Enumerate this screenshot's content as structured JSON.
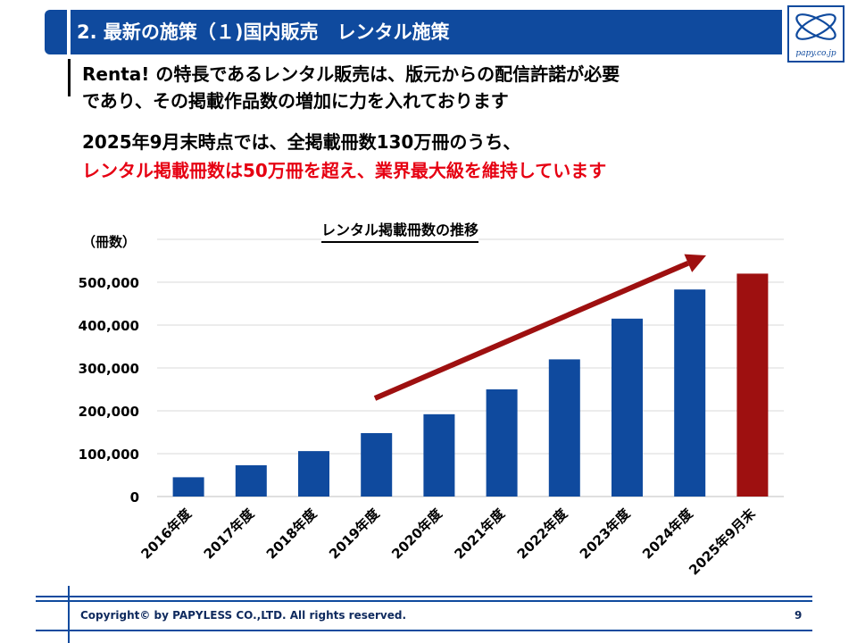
{
  "header": {
    "title": "2. 最新の施策（１)国内販売　レンタル施策"
  },
  "logo": {
    "text": "papy.co.jp"
  },
  "intro": {
    "line1": "Renta! の特長であるレンタル販売は、版元からの配信許諾が必要",
    "line2": "であり、その掲載作品数の増加に力を入れております"
  },
  "highlight": {
    "line1": "2025年9月末時点では、全掲載冊数130万冊のうち、",
    "line2": "レンタル掲載冊数は50万冊を超え、業界最大級を維持しています"
  },
  "chart_data": {
    "type": "bar",
    "title": "レンタル掲載冊数の推移",
    "ylabel": "（冊数）",
    "xlabel": "",
    "categories": [
      "2016年度",
      "2017年度",
      "2018年度",
      "2019年度",
      "2020年度",
      "2021年度",
      "2022年度",
      "2023年度",
      "2024年度",
      "2025年9月末"
    ],
    "values": [
      45000,
      73000,
      106000,
      148000,
      192000,
      250000,
      320000,
      415000,
      483000,
      520000
    ],
    "ylim": [
      0,
      600000
    ],
    "yticks": [
      0,
      100000,
      200000,
      300000,
      400000,
      500000
    ],
    "ytick_labels": [
      "0",
      "100,000",
      "200,000",
      "300,000",
      "400,000",
      "500,000"
    ],
    "colors": {
      "bar": "#0f4a9e",
      "highlight_bar": "#9e1010",
      "arrow": "#9e1010"
    },
    "grid": true
  },
  "footer": {
    "copyright": "Copyright© by PAPYLESS CO.,LTD. All rights reserved.",
    "page_number": "9"
  }
}
